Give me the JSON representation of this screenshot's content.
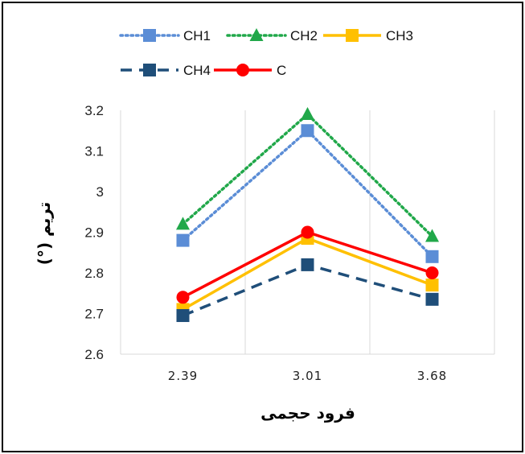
{
  "chart_data": {
    "type": "line",
    "xlabel": "فرود حجمی",
    "ylabel": "تریم (°)",
    "categories": [
      "2.39",
      "3.01",
      "3.68"
    ],
    "ylim": [
      2.6,
      3.2
    ],
    "yticks": [
      "2.6",
      "2.7",
      "2.8",
      "2.9",
      "3",
      "3.1",
      "3.2"
    ],
    "grid": "vertical",
    "legend_position": "top",
    "series": [
      {
        "name": "CH1",
        "values": [
          2.88,
          3.15,
          2.84
        ],
        "color": "#5b8dd6",
        "line": "dotted",
        "marker": "square"
      },
      {
        "name": "CH2",
        "values": [
          2.92,
          3.19,
          2.89
        ],
        "color": "#21a84a",
        "line": "dotted",
        "marker": "triangle"
      },
      {
        "name": "CH3",
        "values": [
          2.71,
          2.885,
          2.77
        ],
        "color": "#ffc000",
        "line": "solid",
        "marker": "square"
      },
      {
        "name": "CH4",
        "values": [
          2.695,
          2.82,
          2.735
        ],
        "color": "#1f4e79",
        "line": "dashed",
        "marker": "square"
      },
      {
        "name": "C",
        "values": [
          2.74,
          2.9,
          2.8
        ],
        "color": "#ff0000",
        "line": "solid",
        "marker": "circle"
      }
    ]
  }
}
